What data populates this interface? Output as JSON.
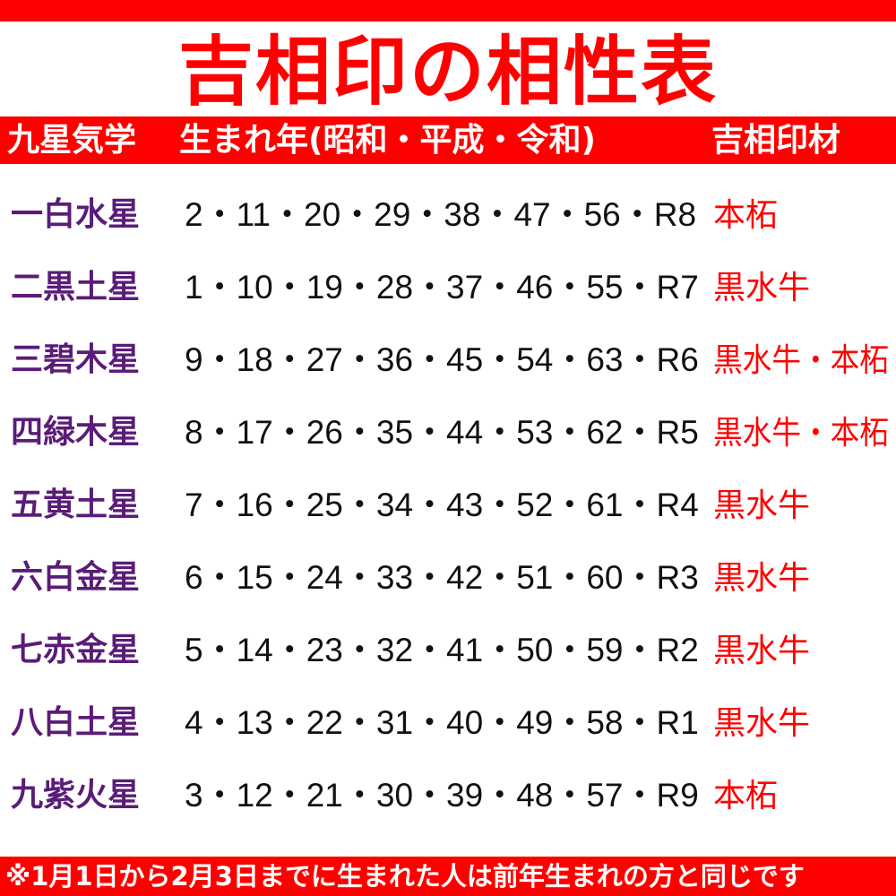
{
  "title": "吉相印の相性表",
  "header": {
    "col1": "九星気学",
    "col2": "生まれ年(昭和・平成・令和)",
    "col3": "吉相印材"
  },
  "rows": [
    {
      "star": "一白水星",
      "years": "2・11・20・29・38・47・56・R8",
      "material": "本柘"
    },
    {
      "star": "二黒土星",
      "years": "1・10・19・28・37・46・55・R7",
      "material": "黒水牛"
    },
    {
      "star": "三碧木星",
      "years": "9・18・27・36・45・54・63・R6",
      "material": "黒水牛・本柘"
    },
    {
      "star": "四緑木星",
      "years": "8・17・26・35・44・53・62・R5",
      "material": "黒水牛・本柘"
    },
    {
      "star": "五黄土星",
      "years": "7・16・25・34・43・52・61・R4",
      "material": "黒水牛"
    },
    {
      "star": "六白金星",
      "years": "6・15・24・33・42・51・60・R3",
      "material": "黒水牛"
    },
    {
      "star": "七赤金星",
      "years": "5・14・23・32・41・50・59・R2",
      "material": "黒水牛"
    },
    {
      "star": "八白土星",
      "years": "4・13・22・31・40・49・58・R1",
      "material": "黒水牛"
    },
    {
      "star": "九紫火星",
      "years": "3・12・21・30・39・48・57・R9",
      "material": "本柘"
    }
  ],
  "footer": "※1月1日から2月3日までに生まれた人は前年生まれの方と同じです",
  "colors": {
    "accent": "#ff0000",
    "star_label": "#5a1c78",
    "text": "#111111"
  }
}
